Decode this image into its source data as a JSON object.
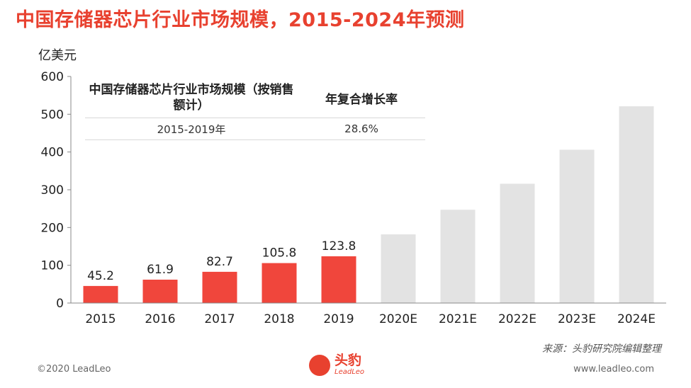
{
  "title": "中国存储器芯片行业市场规模，2015-2024年预测",
  "unit": "亿美元",
  "inset_table": {
    "headers": [
      "中国存储器芯片行业市场规模（按销售额计）",
      "年复合增长率"
    ],
    "rows": [
      [
        "2015-2019年",
        "28.6%"
      ]
    ]
  },
  "source": "来源：头豹研究院编辑整理",
  "footer": {
    "copyright": "©2020 LeadLeo",
    "website": "www.leadleo.com"
  },
  "logo": {
    "name_cn": "头豹",
    "name_en": "LeadLeo"
  },
  "colors": {
    "actual": "#f0463c",
    "forecast": "#e3e3e3",
    "title": "#e8412f"
  },
  "chart_data": {
    "type": "bar",
    "categories": [
      "2015",
      "2016",
      "2017",
      "2018",
      "2019",
      "2020E",
      "2021E",
      "2022E",
      "2023E",
      "2024E"
    ],
    "values": [
      45.2,
      61.9,
      82.7,
      105.8,
      123.8,
      182,
      247,
      316,
      406,
      521
    ],
    "data_labels": [
      "45.2",
      "61.9",
      "82.7",
      "105.8",
      "123.8",
      "",
      "",
      "",
      "",
      ""
    ],
    "forecast": [
      false,
      false,
      false,
      false,
      false,
      true,
      true,
      true,
      true,
      true
    ],
    "ylim": [
      0,
      600
    ],
    "yticks": [
      0,
      100,
      200,
      300,
      400,
      500,
      600
    ],
    "ylabel": "亿美元",
    "xlabel": "",
    "grid": false,
    "legend": "none"
  }
}
